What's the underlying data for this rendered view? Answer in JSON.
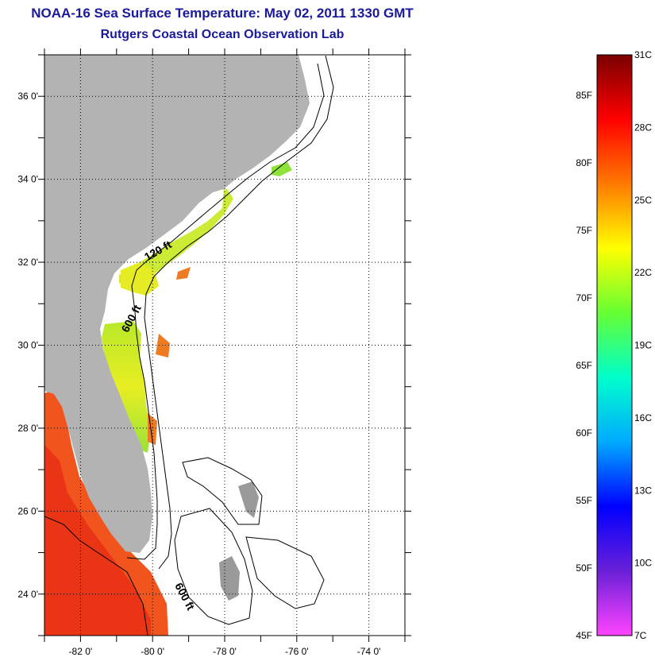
{
  "header": {
    "title": "NOAA-16 Sea Surface Temperature:  May 02, 2011 1330 GMT",
    "subtitle": "Rutgers Coastal Ocean Observation Lab"
  },
  "map": {
    "lon_range": [
      -83,
      -73
    ],
    "lat_range": [
      23,
      37
    ],
    "lat_ticks": [
      {
        "value": 24,
        "label": "24 0'"
      },
      {
        "value": 26,
        "label": "26 0'"
      },
      {
        "value": 28,
        "label": "28 0'"
      },
      {
        "value": 30,
        "label": "30 0'"
      },
      {
        "value": 32,
        "label": "32 0'"
      },
      {
        "value": 34,
        "label": "34 0'"
      },
      {
        "value": 36,
        "label": "36 0'"
      }
    ],
    "lon_ticks": [
      {
        "value": -82,
        "label": "-82 0'"
      },
      {
        "value": -80,
        "label": "-80 0'"
      },
      {
        "value": -78,
        "label": "-78 0'"
      },
      {
        "value": -76,
        "label": "-76 0'"
      },
      {
        "value": -74,
        "label": "-74 0'"
      }
    ],
    "contour_labels": [
      {
        "text": "120 ft",
        "lon": -79.8,
        "lat": 32.2
      },
      {
        "text": "600 ft",
        "lon": -80.5,
        "lat": 30.6
      },
      {
        "text": "600 ft",
        "lon": -79.2,
        "lat": 23.9
      }
    ],
    "colors": {
      "land": "#b3b3b3",
      "ocean": "#ffffff",
      "grid": "#000000"
    }
  },
  "colorbar": {
    "f_labels": [
      "85F",
      "80F",
      "75F",
      "70F",
      "65F",
      "60F",
      "55F",
      "50F",
      "45F"
    ],
    "c_labels": [
      "31C",
      "28C",
      "25C",
      "22C",
      "19C",
      "16C",
      "13C",
      "10C",
      "7C"
    ],
    "stops": [
      "#7a0000",
      "#ff0000",
      "#ff7a00",
      "#ffff00",
      "#66ff33",
      "#00ffcc",
      "#00aaff",
      "#0000ff",
      "#6a1fd8",
      "#ff44ff"
    ]
  }
}
